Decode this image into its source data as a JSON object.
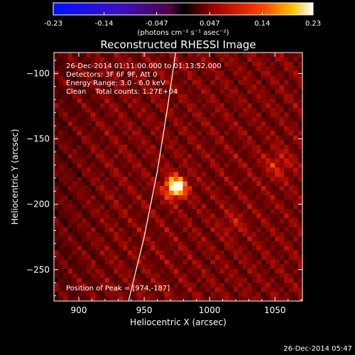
{
  "chart_data": {
    "type": "heatmap",
    "title": "Reconstructed RHESSI Image",
    "xlabel": "Heliocentric X (arcsec)",
    "ylabel": "Heliocentric Y (arcsec)",
    "xlim": [
      881,
      1071
    ],
    "ylim": [
      -274,
      -84
    ],
    "xticks": [
      900,
      950,
      1000,
      1050
    ],
    "yticks": [
      -100,
      -150,
      -200,
      -250
    ],
    "colorbar": {
      "ticks": [
        "-0.23",
        "-0.14",
        "-0.047",
        "0.047",
        "0.14",
        "0.23"
      ],
      "range": [
        -0.23,
        0.23
      ],
      "unit_label": "(photons cm⁻² s⁻¹ asec⁻²)"
    },
    "annotations": [
      "26-Dec-2014 01:11:00.000 to 01:13:52.000",
      "Detectors: 3F 6F 9F, Att 0",
      "Energy Range: 3.0 - 6.0 keV",
      "Clean    Total counts: 1.27E+04",
      "Position of Peak = [974,-187]"
    ],
    "peak": {
      "x": 974,
      "y": -187,
      "value": 0.23
    },
    "limb": [
      [
        938,
        -274
      ],
      [
        950,
        -225
      ],
      [
        960,
        -175
      ],
      [
        968,
        -125
      ],
      [
        974,
        -84
      ]
    ],
    "colors": {
      "background": "#000000",
      "axis": "#ffffff"
    }
  },
  "footer": {
    "timestamp": "26-Dec-2014 05:47"
  }
}
